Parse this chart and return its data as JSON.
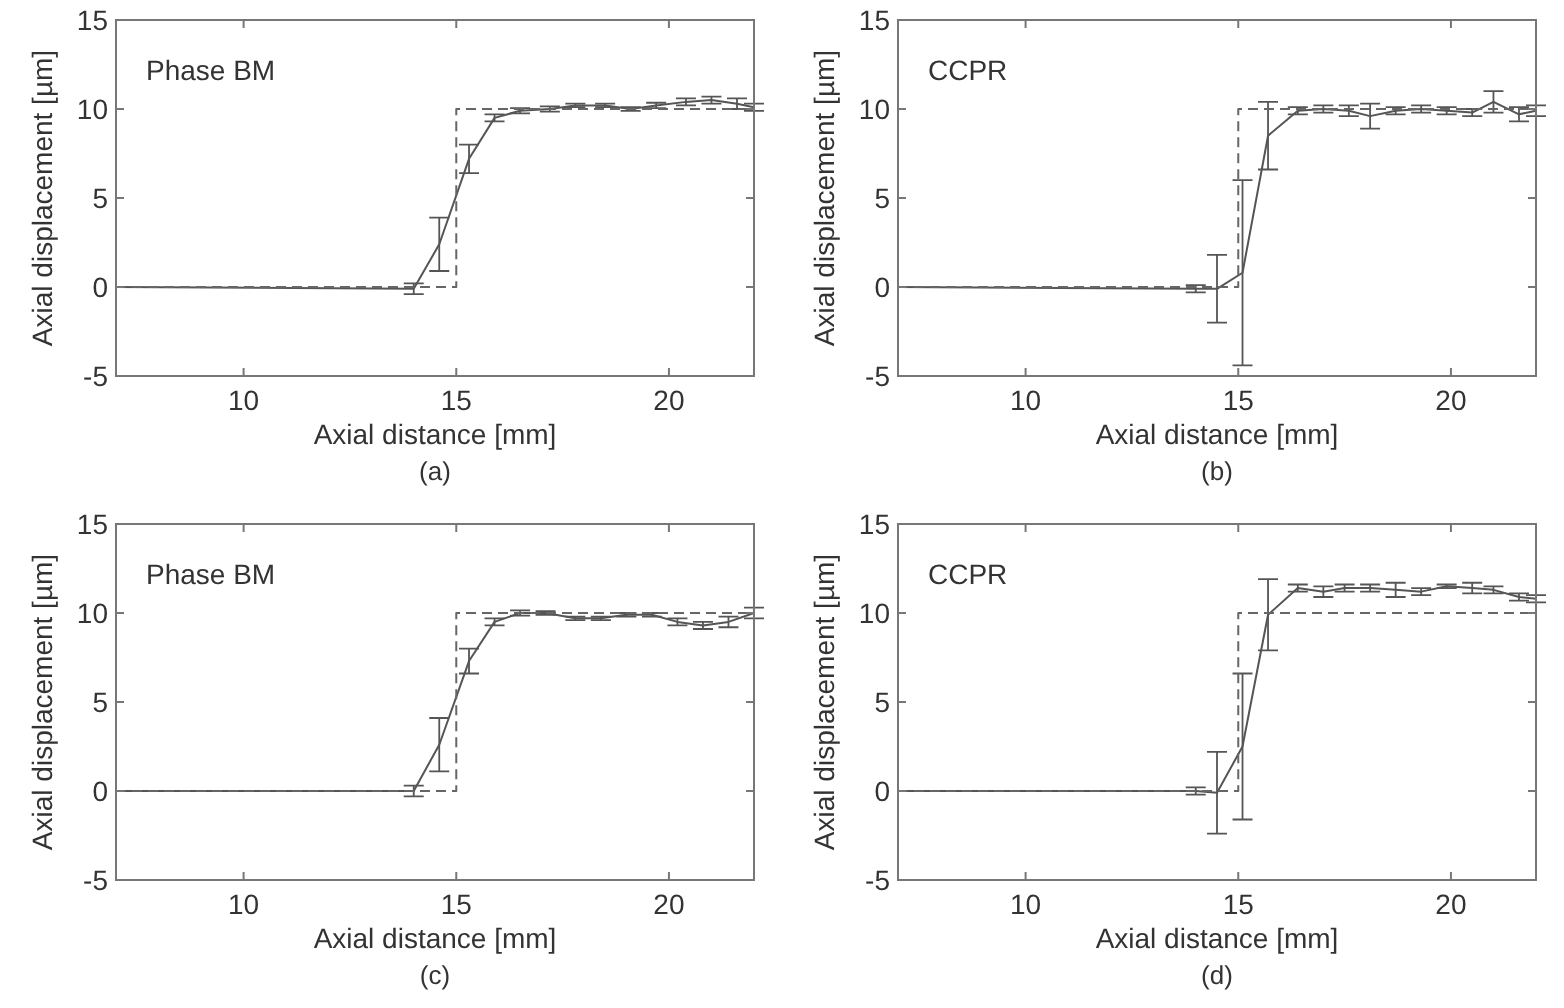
{
  "chart_data": [
    {
      "type": "line",
      "xlabel": "Axial distance [mm]",
      "ylabel": "Axial displacement [µm]",
      "xlim": [
        7,
        22
      ],
      "ylim": [
        -5,
        15
      ],
      "xticks": [
        10,
        15,
        20
      ],
      "yticks": [
        -5,
        0,
        5,
        10,
        15
      ],
      "grid": false,
      "marker": "none",
      "annotations": [
        "Phase BM",
        "(a)"
      ],
      "series": [
        {
          "color": "#555555",
          "line_style": "solid",
          "x": [
            7,
            14,
            14.6,
            15.3,
            15.9,
            16.5,
            17.2,
            17.8,
            18.5,
            19.1,
            19.7,
            20.4,
            21,
            21.6,
            22
          ],
          "values": [
            0,
            -0.1,
            2.4,
            7.2,
            9.5,
            9.9,
            10,
            10.2,
            10.2,
            10,
            10.2,
            10.4,
            10.5,
            10.3,
            10.1
          ],
          "errors": [
            null,
            0.3,
            1.5,
            0.8,
            0.2,
            0.15,
            0.15,
            0.1,
            0.1,
            0.1,
            0.15,
            0.2,
            0.2,
            0.3,
            0.2
          ]
        },
        {
          "color": "#666666",
          "line_style": "dashed",
          "x": [
            7,
            15,
            15,
            22
          ],
          "values": [
            0,
            0,
            10,
            10
          ]
        }
      ]
    },
    {
      "type": "line",
      "xlabel": "Axial distance [mm]",
      "ylabel": "Axial displacement [µm]",
      "xlim": [
        7,
        22
      ],
      "ylim": [
        -5,
        15
      ],
      "xticks": [
        10,
        15,
        20
      ],
      "yticks": [
        -5,
        0,
        5,
        10,
        15
      ],
      "grid": false,
      "marker": "none",
      "annotations": [
        "CCPR",
        "(b)"
      ],
      "series": [
        {
          "color": "#555555",
          "line_style": "solid",
          "x": [
            7,
            14,
            14.5,
            15.1,
            15.7,
            16.4,
            17,
            17.6,
            18.1,
            18.7,
            19.3,
            19.9,
            20.5,
            21,
            21.6,
            22
          ],
          "values": [
            0,
            -0.1,
            -0.1,
            0.8,
            8.5,
            9.9,
            10,
            9.9,
            9.6,
            9.9,
            10,
            9.9,
            9.8,
            10.4,
            9.7,
            9.9
          ],
          "errors": [
            null,
            0.2,
            1.9,
            5.2,
            1.9,
            0.2,
            0.2,
            0.3,
            0.7,
            0.2,
            0.2,
            0.2,
            0.2,
            0.6,
            0.4,
            0.3
          ]
        },
        {
          "color": "#666666",
          "line_style": "dashed",
          "x": [
            7,
            15,
            15,
            22
          ],
          "values": [
            0,
            0,
            10,
            10
          ]
        }
      ]
    },
    {
      "type": "line",
      "xlabel": "Axial distance [mm]",
      "ylabel": "Axial displacement [µm]",
      "xlim": [
        7,
        22
      ],
      "ylim": [
        -5,
        15
      ],
      "xticks": [
        10,
        15,
        20
      ],
      "yticks": [
        -5,
        0,
        5,
        10,
        15
      ],
      "grid": false,
      "marker": "none",
      "annotations": [
        "Phase BM",
        "(c)"
      ],
      "series": [
        {
          "color": "#555555",
          "line_style": "solid",
          "x": [
            7,
            14,
            14.6,
            15.3,
            15.9,
            16.5,
            17.1,
            17.8,
            18.4,
            19,
            19.6,
            20.2,
            20.8,
            21.4,
            22
          ],
          "values": [
            0,
            0,
            2.6,
            7.3,
            9.5,
            10,
            10,
            9.7,
            9.7,
            9.9,
            9.9,
            9.5,
            9.3,
            9.5,
            10
          ],
          "errors": [
            null,
            0.3,
            1.5,
            0.7,
            0.2,
            0.15,
            0.1,
            0.1,
            0.1,
            0.1,
            0.1,
            0.2,
            0.2,
            0.3,
            0.3
          ]
        },
        {
          "color": "#666666",
          "line_style": "dashed",
          "x": [
            7,
            15,
            15,
            22
          ],
          "values": [
            0,
            0,
            10,
            10
          ]
        }
      ]
    },
    {
      "type": "line",
      "xlabel": "Axial distance [mm]",
      "ylabel": "Axial displacement [µm]",
      "xlim": [
        7,
        22
      ],
      "ylim": [
        -5,
        15
      ],
      "xticks": [
        10,
        15,
        20
      ],
      "yticks": [
        -5,
        0,
        5,
        10,
        15
      ],
      "grid": false,
      "marker": "none",
      "annotations": [
        "CCPR",
        "(d)"
      ],
      "series": [
        {
          "color": "#555555",
          "line_style": "solid",
          "x": [
            7,
            14,
            14.5,
            15.1,
            15.7,
            16.4,
            17,
            17.5,
            18.1,
            18.7,
            19.3,
            19.9,
            20.5,
            21,
            21.6,
            22
          ],
          "values": [
            0,
            0,
            -0.1,
            2.5,
            9.9,
            11.4,
            11.2,
            11.4,
            11.4,
            11.3,
            11.2,
            11.5,
            11.4,
            11.3,
            10.9,
            10.8
          ],
          "errors": [
            null,
            0.2,
            2.3,
            4.1,
            2,
            0.2,
            0.3,
            0.2,
            0.2,
            0.4,
            0.2,
            0.1,
            0.3,
            0.2,
            0.2,
            0.2
          ]
        },
        {
          "color": "#666666",
          "line_style": "dashed",
          "x": [
            7,
            15,
            15,
            22
          ],
          "values": [
            0,
            0,
            10,
            10
          ]
        }
      ]
    }
  ]
}
